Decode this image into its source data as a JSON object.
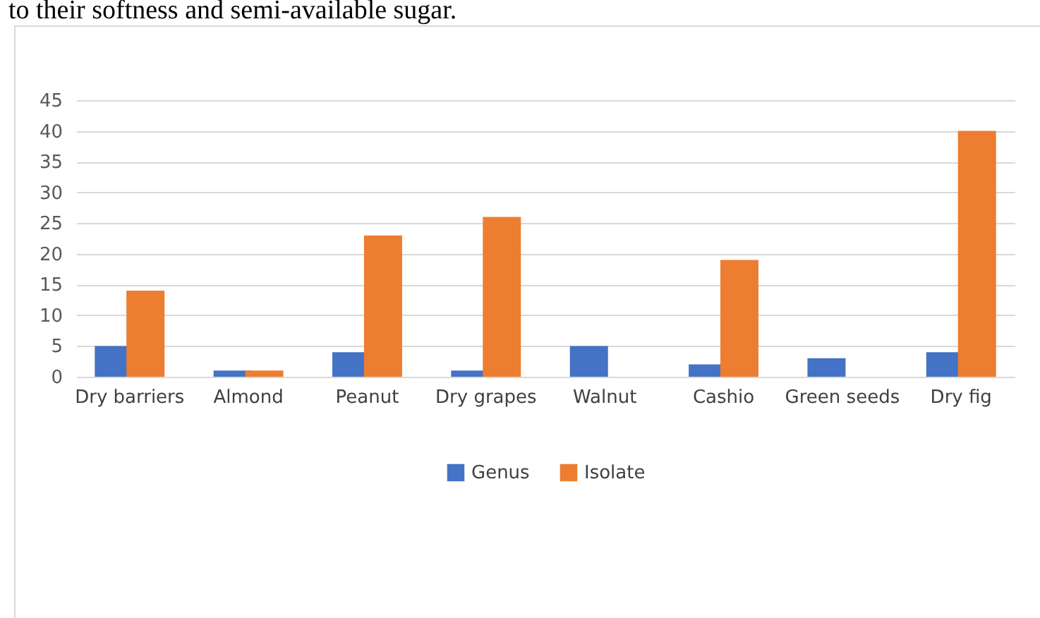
{
  "chart_data": {
    "type": "bar",
    "categories": [
      "Dry barriers",
      "Almond",
      "Peanut",
      "Dry grapes",
      "Walnut",
      "Cashio",
      "Green seeds",
      "Dry fig"
    ],
    "series": [
      {
        "name": "Genus",
        "color": "#4472c4",
        "values": [
          5,
          1,
          4,
          1,
          5,
          2,
          3,
          4
        ]
      },
      {
        "name": "Isolate",
        "color": "#ed7d31",
        "values": [
          14,
          1,
          23,
          26,
          0,
          19,
          0,
          40
        ]
      }
    ],
    "ylim": [
      0,
      45
    ],
    "yticks": [
      0,
      5,
      10,
      15,
      20,
      25,
      30,
      35,
      40,
      45
    ],
    "grid": "y",
    "legend": "bottom",
    "annotations": [
      "to their softness and semi-available sugar."
    ]
  }
}
